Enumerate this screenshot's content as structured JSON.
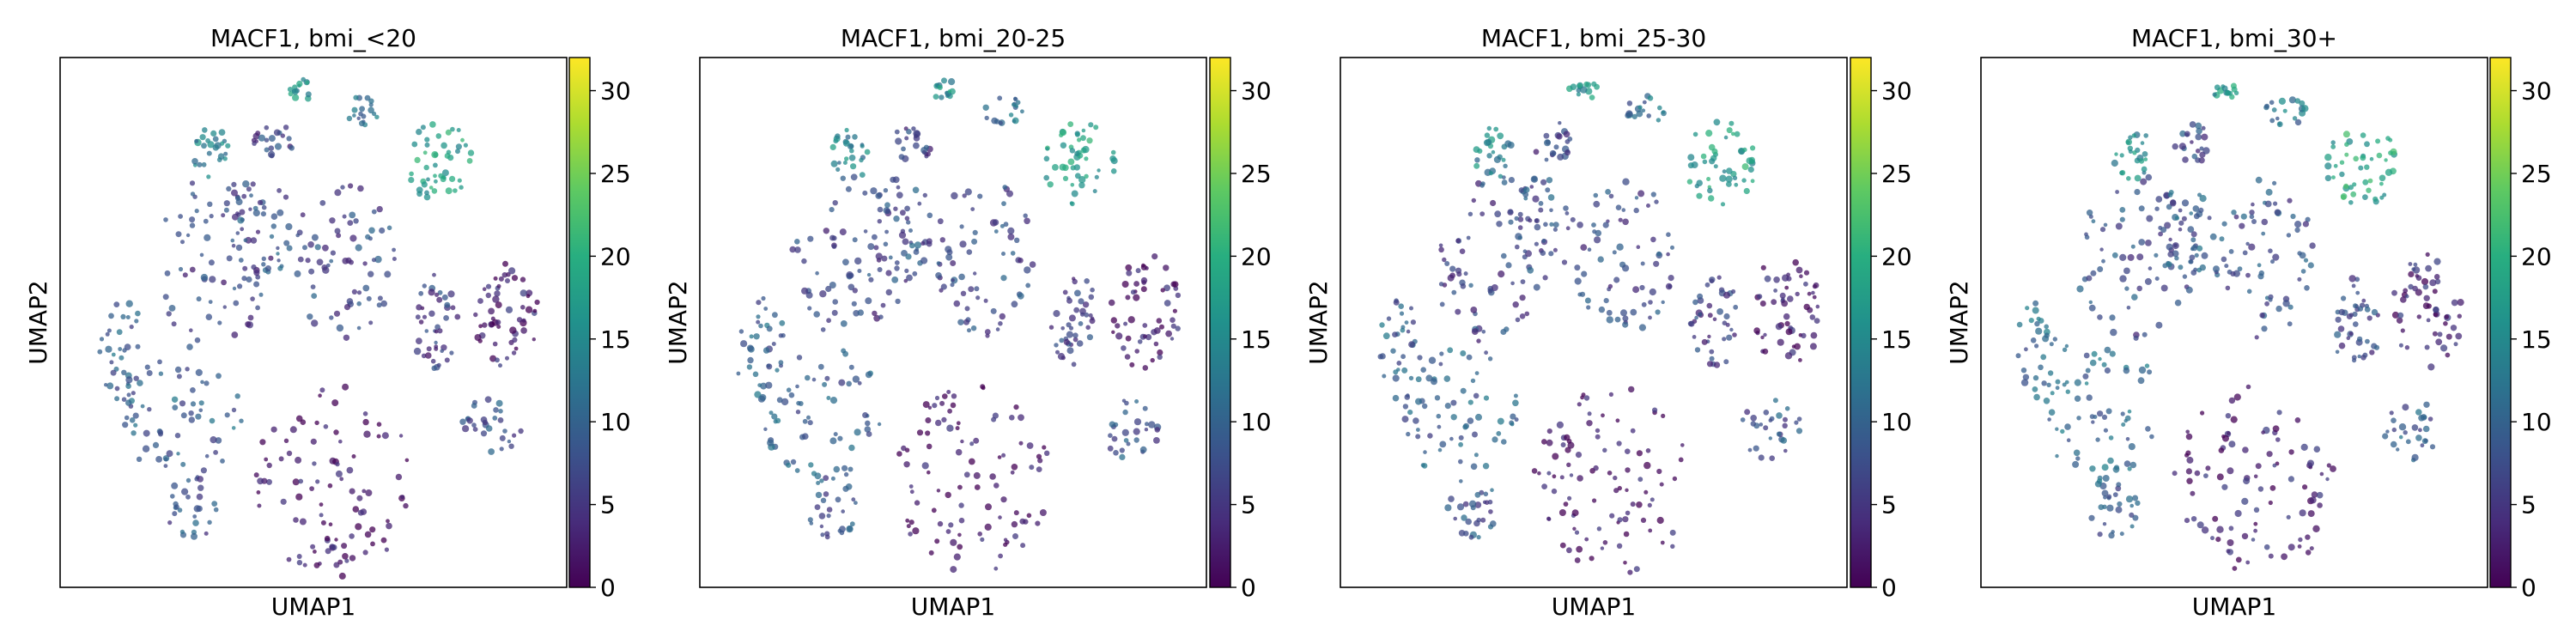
{
  "chart_data": [
    {
      "type": "scatter",
      "title": "MACF1, bmi_<20",
      "xlabel": "UMAP1",
      "ylabel": "UMAP2",
      "colorbar": {
        "cmap": "viridis",
        "range": [
          0,
          32
        ],
        "ticks": [
          0,
          5,
          10,
          15,
          20,
          25,
          30
        ]
      },
      "x_ticks": [],
      "y_ticks": []
    },
    {
      "type": "scatter",
      "title": "MACF1, bmi_20-25",
      "xlabel": "UMAP1",
      "ylabel": "UMAP2",
      "colorbar": {
        "cmap": "viridis",
        "range": [
          0,
          32
        ],
        "ticks": [
          0,
          5,
          10,
          15,
          20,
          25,
          30
        ]
      },
      "x_ticks": [],
      "y_ticks": []
    },
    {
      "type": "scatter",
      "title": "MACF1, bmi_25-30",
      "xlabel": "UMAP1",
      "ylabel": "UMAP2",
      "colorbar": {
        "cmap": "viridis",
        "range": [
          0,
          32
        ],
        "ticks": [
          0,
          5,
          10,
          15,
          20,
          25,
          30
        ]
      },
      "x_ticks": [],
      "y_ticks": []
    },
    {
      "type": "scatter",
      "title": "MACF1, bmi_30+",
      "xlabel": "UMAP1",
      "ylabel": "UMAP2",
      "colorbar": {
        "cmap": "viridis",
        "range": [
          0,
          32
        ],
        "ticks": [
          0,
          5,
          10,
          15,
          20,
          25,
          30
        ]
      },
      "x_ticks": [],
      "y_ticks": []
    }
  ]
}
